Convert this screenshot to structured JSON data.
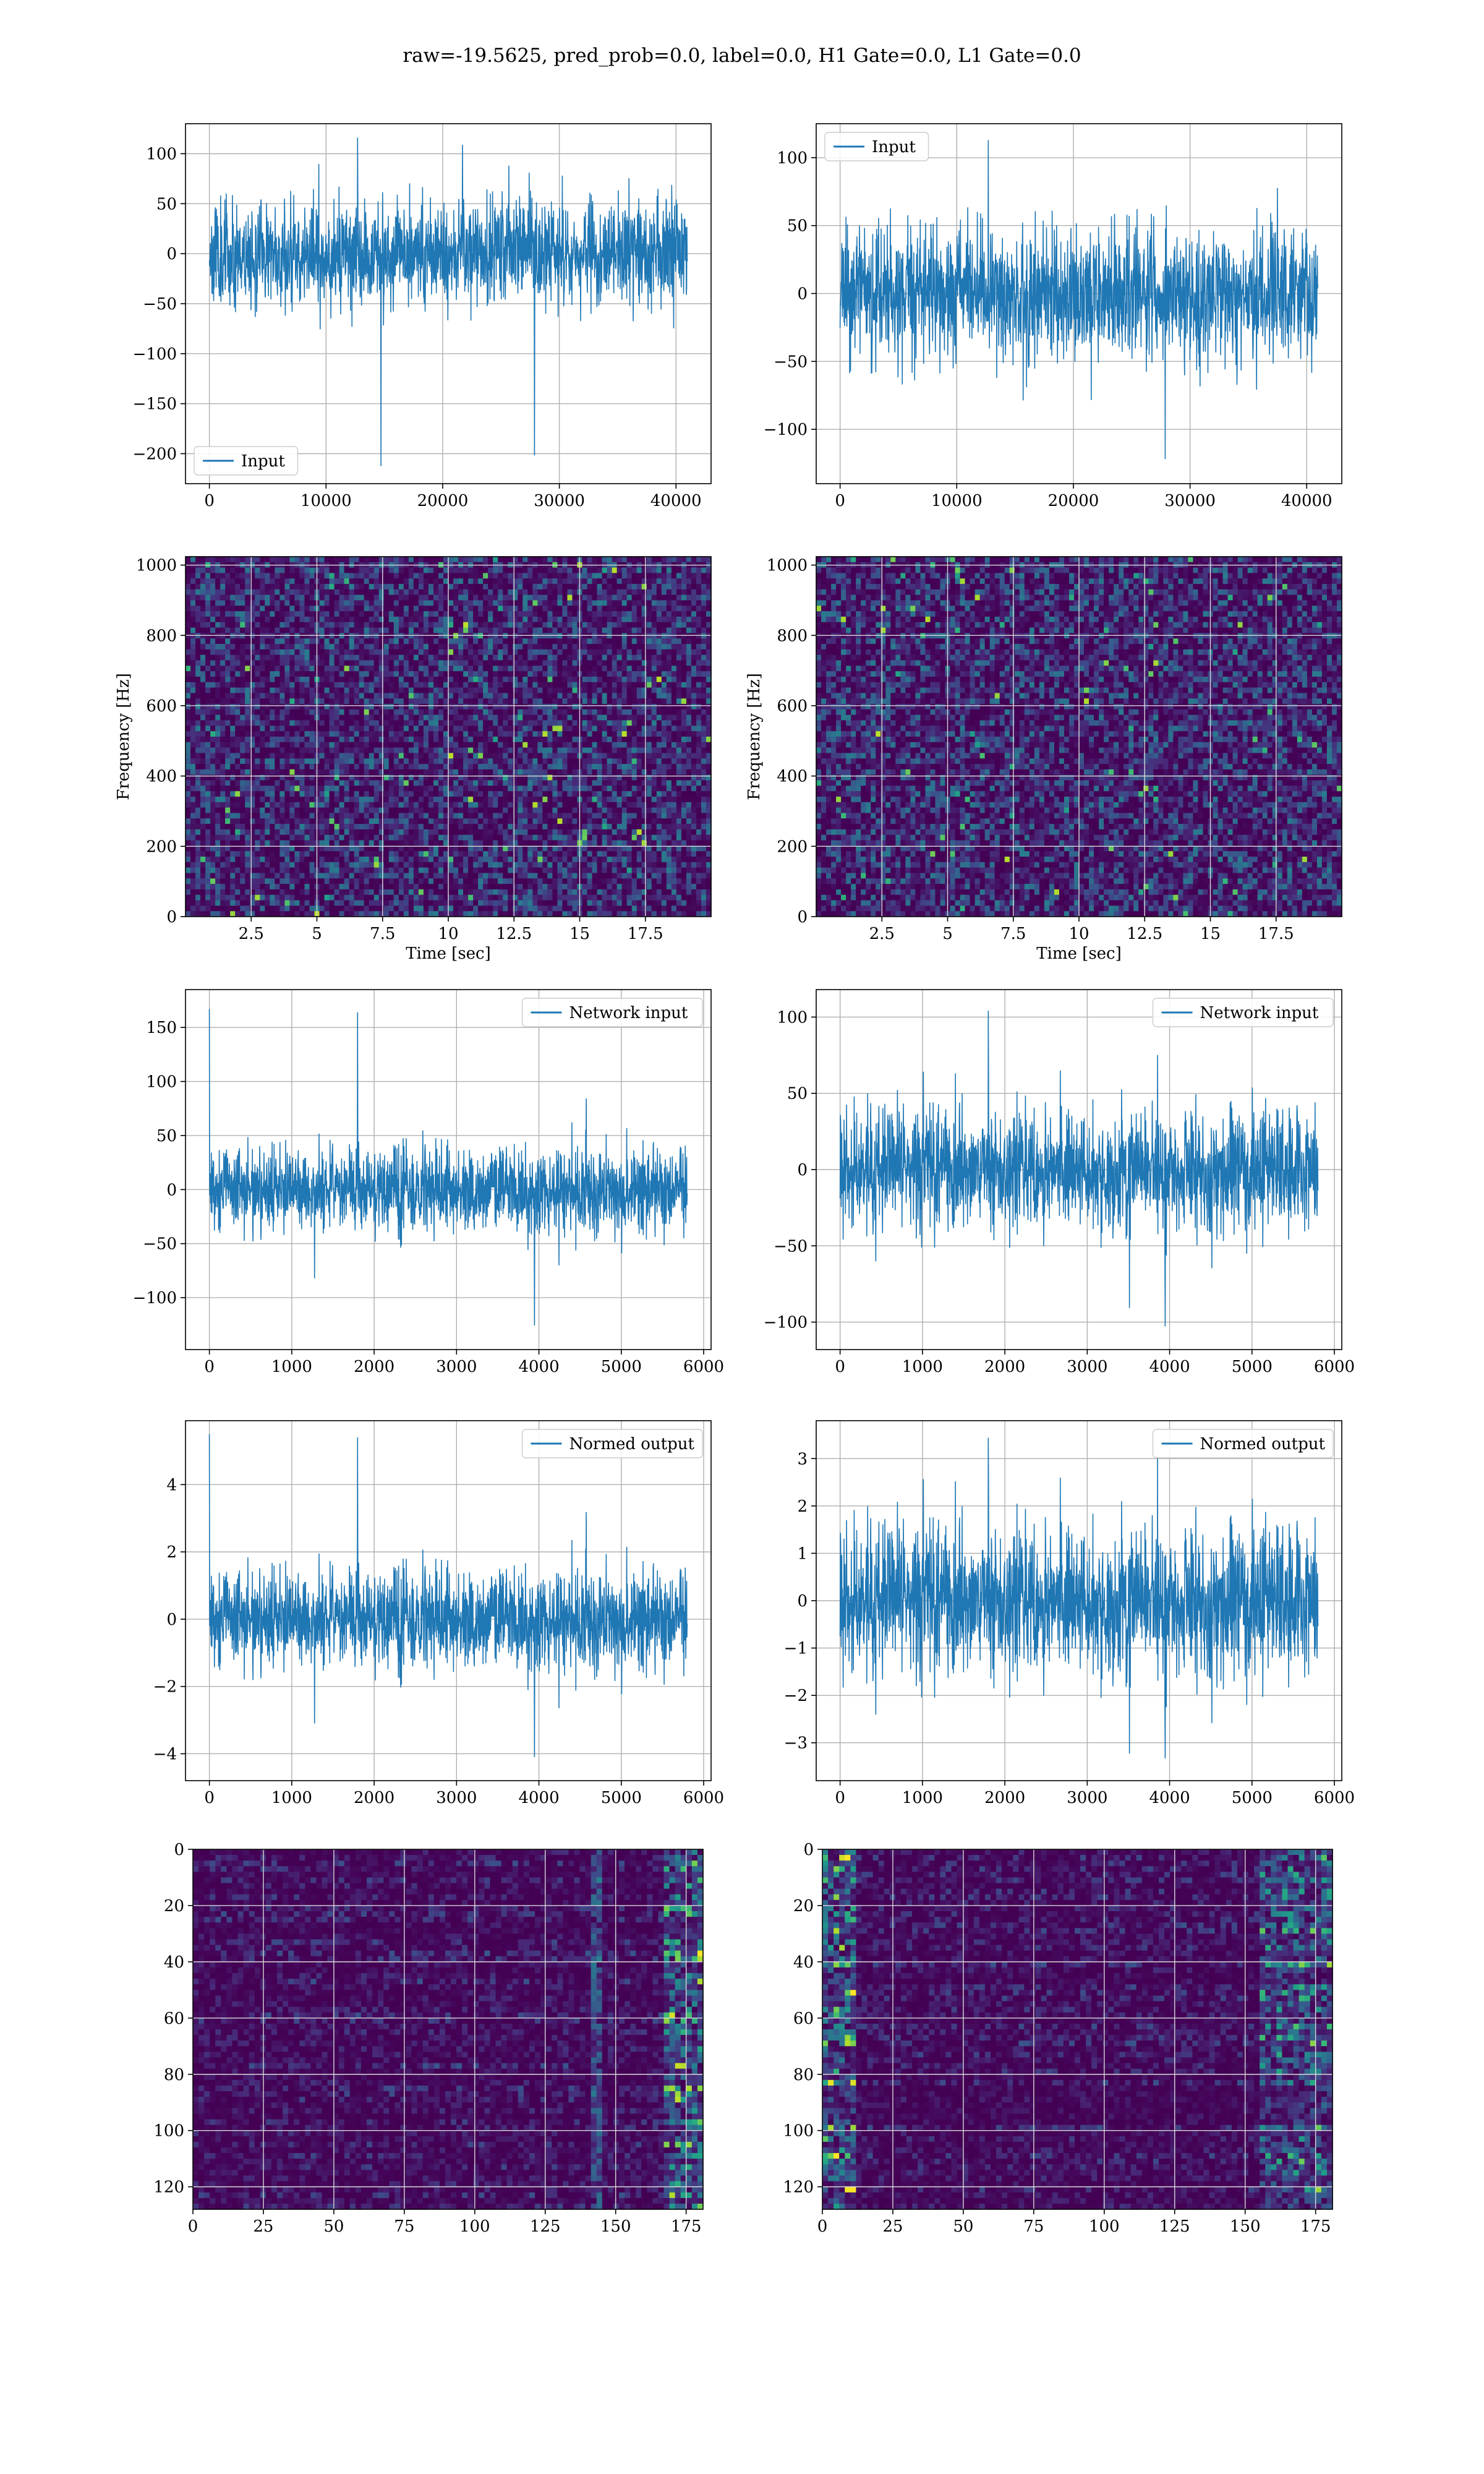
{
  "figure_title": "raw=-19.5625, pred_prob=0.0, label=0.0, H1 Gate=0.0, L1 Gate=0.0",
  "colors": {
    "line": "#1f77b4",
    "grid": "#b0b0b0",
    "viridis_low": "#440154",
    "viridis_mid": "#21918c",
    "viridis_high": "#fde725"
  },
  "chart_data": [
    {
      "id": "input-h1",
      "type": "line",
      "style": "noise",
      "series": [
        {
          "name": "Input",
          "n": 40960,
          "typical_amplitude": 60,
          "min": -212,
          "max": 118,
          "spike_x": 14700,
          "spike_y": -212
        }
      ],
      "xlim": [
        -2048,
        43008
      ],
      "ylim": [
        -230,
        130
      ],
      "xticks": [
        0,
        10000,
        20000,
        30000,
        40000
      ],
      "yticks": [
        100,
        50,
        0,
        -50,
        -100,
        -150,
        -200
      ],
      "legend": "lower-left",
      "grid": true,
      "xlabel": "",
      "ylabel": ""
    },
    {
      "id": "input-l1",
      "type": "line",
      "style": "noise",
      "series": [
        {
          "name": "Input",
          "n": 40960,
          "typical_amplitude": 55,
          "min": -128,
          "max": 115
        }
      ],
      "xlim": [
        -2048,
        43008
      ],
      "ylim": [
        -140,
        125
      ],
      "xticks": [
        0,
        10000,
        20000,
        30000,
        40000
      ],
      "yticks": [
        100,
        50,
        0,
        -50,
        -100
      ],
      "legend": "upper-left",
      "grid": true,
      "xlabel": "",
      "ylabel": ""
    },
    {
      "id": "spectrogram-h1",
      "type": "heatmap",
      "xlim": [
        0,
        20
      ],
      "ylim": [
        0,
        1024
      ],
      "xticks": [
        2.5,
        5.0,
        7.5,
        10.0,
        12.5,
        15.0,
        17.5
      ],
      "yticks": [
        1000,
        800,
        600,
        400,
        200,
        0
      ],
      "xlabel": "Time [sec]",
      "ylabel": "Frequency [Hz]",
      "grid": true,
      "colormap": "viridis"
    },
    {
      "id": "spectrogram-l1",
      "type": "heatmap",
      "xlim": [
        0,
        20
      ],
      "ylim": [
        0,
        1024
      ],
      "xticks": [
        2.5,
        5.0,
        7.5,
        10.0,
        12.5,
        15.0,
        17.5
      ],
      "yticks": [
        1000,
        800,
        600,
        400,
        200,
        0
      ],
      "xlabel": "Time [sec]",
      "ylabel": "Frequency [Hz]",
      "grid": true,
      "colormap": "viridis"
    },
    {
      "id": "network-input-h1",
      "type": "line",
      "style": "noise",
      "series": [
        {
          "name": "Network input",
          "n": 5800,
          "typical_amplitude": 45,
          "min": -132,
          "max": 167,
          "spike_x": 0,
          "spike_y": 167
        }
      ],
      "xlim": [
        -290,
        6090
      ],
      "ylim": [
        -148,
        185
      ],
      "xticks": [
        0,
        1000,
        2000,
        3000,
        4000,
        5000,
        6000
      ],
      "yticks": [
        150,
        100,
        50,
        0,
        -50,
        -100
      ],
      "legend": "upper-right",
      "grid": true,
      "xlabel": "",
      "ylabel": ""
    },
    {
      "id": "network-input-l1",
      "type": "line",
      "style": "noise",
      "series": [
        {
          "name": "Network input",
          "n": 5800,
          "typical_amplitude": 45,
          "min": -108,
          "max": 106
        }
      ],
      "xlim": [
        -290,
        6090
      ],
      "ylim": [
        -118,
        118
      ],
      "xticks": [
        0,
        1000,
        2000,
        3000,
        4000,
        5000,
        6000
      ],
      "yticks": [
        100,
        50,
        0,
        -50,
        -100
      ],
      "legend": "upper-right",
      "grid": true,
      "xlabel": "",
      "ylabel": ""
    },
    {
      "id": "normed-output-h1",
      "type": "line",
      "style": "noise",
      "series": [
        {
          "name": "Normed output",
          "n": 5800,
          "typical_amplitude": 1.7,
          "min": -4.3,
          "max": 5.5,
          "spike_x": 0,
          "spike_y": 5.5
        }
      ],
      "xlim": [
        -290,
        6090
      ],
      "ylim": [
        -4.8,
        5.9
      ],
      "xticks": [
        0,
        1000,
        2000,
        3000,
        4000,
        5000,
        6000
      ],
      "yticks": [
        4,
        2,
        0,
        -2,
        -4
      ],
      "legend": "upper-right",
      "grid": true,
      "xlabel": "",
      "ylabel": ""
    },
    {
      "id": "normed-output-l1",
      "type": "line",
      "style": "noise",
      "series": [
        {
          "name": "Normed output",
          "n": 5800,
          "typical_amplitude": 1.8,
          "min": -3.5,
          "max": 3.5
        }
      ],
      "xlim": [
        -290,
        6090
      ],
      "ylim": [
        -3.8,
        3.8
      ],
      "xticks": [
        0,
        1000,
        2000,
        3000,
        4000,
        5000,
        6000
      ],
      "yticks": [
        3,
        2,
        1,
        0,
        -1,
        -2,
        -3
      ],
      "legend": "upper-right",
      "grid": true,
      "xlabel": "",
      "ylabel": ""
    },
    {
      "id": "features-h1",
      "type": "heatmap",
      "xlim": [
        0,
        181
      ],
      "ylim": [
        128,
        0
      ],
      "xticks": [
        0,
        25,
        50,
        75,
        100,
        125,
        150,
        175
      ],
      "yticks": [
        0,
        20,
        40,
        60,
        80,
        100,
        120
      ],
      "grid": true,
      "colormap": "viridis",
      "xlabel": "",
      "ylabel": ""
    },
    {
      "id": "features-l1",
      "type": "heatmap",
      "xlim": [
        0,
        181
      ],
      "ylim": [
        128,
        0
      ],
      "xticks": [
        0,
        25,
        50,
        75,
        100,
        125,
        150,
        175
      ],
      "yticks": [
        0,
        20,
        40,
        60,
        80,
        100,
        120
      ],
      "grid": true,
      "colormap": "viridis",
      "xlabel": "",
      "ylabel": ""
    }
  ]
}
